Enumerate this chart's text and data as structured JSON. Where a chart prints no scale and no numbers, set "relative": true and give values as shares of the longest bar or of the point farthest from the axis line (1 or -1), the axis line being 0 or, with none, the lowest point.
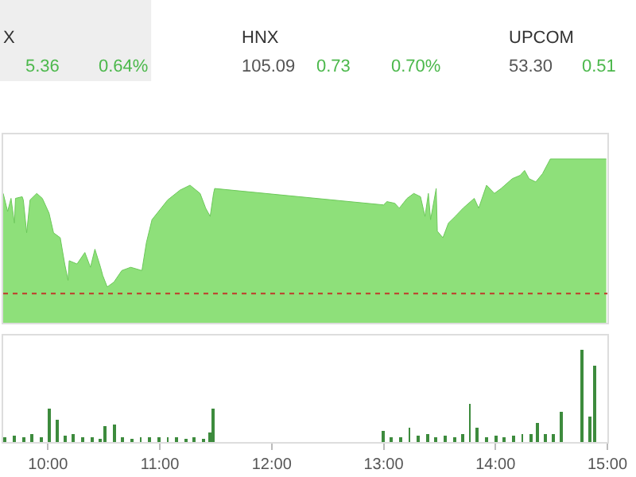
{
  "chart_data": [
    {
      "type": "other",
      "annotations": [
        "X",
        "5.36",
        "0.64%",
        "HNX",
        "105.09",
        "0.73",
        "0.70%",
        "UPCOM",
        "53.30",
        "0.51"
      ]
    },
    {
      "type": "area",
      "relative": true,
      "color": "#8ee07a",
      "tick_labels": false,
      "xlim": [
        9.6,
        15.0
      ],
      "x": [
        9.6,
        9.64,
        9.67,
        9.7,
        9.71,
        9.77,
        9.78,
        9.81,
        9.84,
        9.9,
        9.95,
        10.01,
        10.05,
        10.11,
        10.15,
        10.18,
        10.19,
        10.26,
        10.33,
        10.38,
        10.42,
        10.47,
        10.49,
        10.53,
        10.59,
        10.66,
        10.74,
        10.84,
        10.88,
        10.93,
        11.07,
        11.18,
        11.27,
        11.36,
        11.41,
        11.45,
        11.48,
        11.49,
        13.0,
        13.03,
        13.1,
        13.14,
        13.21,
        13.27,
        13.33,
        13.37,
        13.4,
        13.42,
        13.47,
        13.48,
        13.53,
        13.58,
        13.64,
        13.71,
        13.81,
        13.85,
        13.92,
        13.99,
        14.05,
        14.15,
        14.22,
        14.26,
        14.3,
        14.36,
        14.42,
        14.49,
        14.99
      ],
      "values": [
        0.79,
        0.68,
        0.76,
        0.61,
        0.76,
        0.77,
        0.75,
        0.55,
        0.75,
        0.79,
        0.76,
        0.67,
        0.55,
        0.52,
        0.36,
        0.26,
        0.38,
        0.36,
        0.43,
        0.34,
        0.45,
        0.34,
        0.29,
        0.22,
        0.25,
        0.32,
        0.34,
        0.32,
        0.49,
        0.63,
        0.75,
        0.81,
        0.84,
        0.79,
        0.7,
        0.65,
        0.79,
        0.82,
        0.72,
        0.74,
        0.73,
        0.7,
        0.76,
        0.79,
        0.77,
        0.65,
        0.79,
        0.63,
        0.82,
        0.56,
        0.52,
        0.61,
        0.65,
        0.7,
        0.76,
        0.7,
        0.84,
        0.79,
        0.82,
        0.88,
        0.9,
        0.93,
        0.88,
        0.86,
        0.91,
        1.0,
        1.0
      ],
      "ref_lines": [
        {
          "axis": "y",
          "value": 0.18,
          "color": "#c0392b",
          "line_style": "dotted"
        }
      ]
    },
    {
      "type": "bar",
      "relative": true,
      "color": "#3d8b3d",
      "tick_labels": "x",
      "xlim": [
        9.6,
        15.0
      ],
      "xticks": [
        {
          "value": 10,
          "label": "10:00"
        },
        {
          "value": 11,
          "label": "11:00"
        },
        {
          "value": 12,
          "label": "12:00"
        },
        {
          "value": 13,
          "label": "13:00"
        },
        {
          "value": 14,
          "label": "14:00"
        },
        {
          "value": 15,
          "label": "15:00"
        }
      ],
      "x": [
        9.62,
        9.7,
        9.78,
        9.86,
        9.94,
        10.01,
        10.08,
        10.15,
        10.23,
        10.31,
        10.39,
        10.47,
        10.51,
        10.59,
        10.67,
        10.75,
        10.83,
        10.91,
        10.99,
        11.07,
        11.15,
        11.23,
        11.31,
        11.39,
        11.45,
        11.48,
        13.0,
        13.07,
        13.15,
        13.23,
        13.31,
        13.39,
        13.47,
        13.55,
        13.63,
        13.71,
        13.77,
        13.84,
        13.92,
        14.0,
        14.08,
        14.16,
        14.24,
        14.32,
        14.38,
        14.45,
        14.52,
        14.59,
        14.77,
        14.84,
        14.89
      ],
      "values": [
        0.06,
        0.07,
        0.05,
        0.08,
        0.06,
        0.37,
        0.24,
        0.07,
        0.08,
        0.05,
        0.06,
        0.04,
        0.17,
        0.19,
        0.05,
        0.04,
        0.05,
        0.06,
        0.05,
        0.06,
        0.05,
        0.04,
        0.05,
        0.04,
        0.11,
        0.37,
        0.13,
        0.05,
        0.06,
        0.15,
        0.07,
        0.08,
        0.06,
        0.07,
        0.06,
        0.08,
        0.41,
        0.15,
        0.06,
        0.07,
        0.06,
        0.07,
        0.08,
        0.09,
        0.2,
        0.09,
        0.08,
        0.33,
        1.0,
        0.28,
        0.83
      ]
    }
  ]
}
